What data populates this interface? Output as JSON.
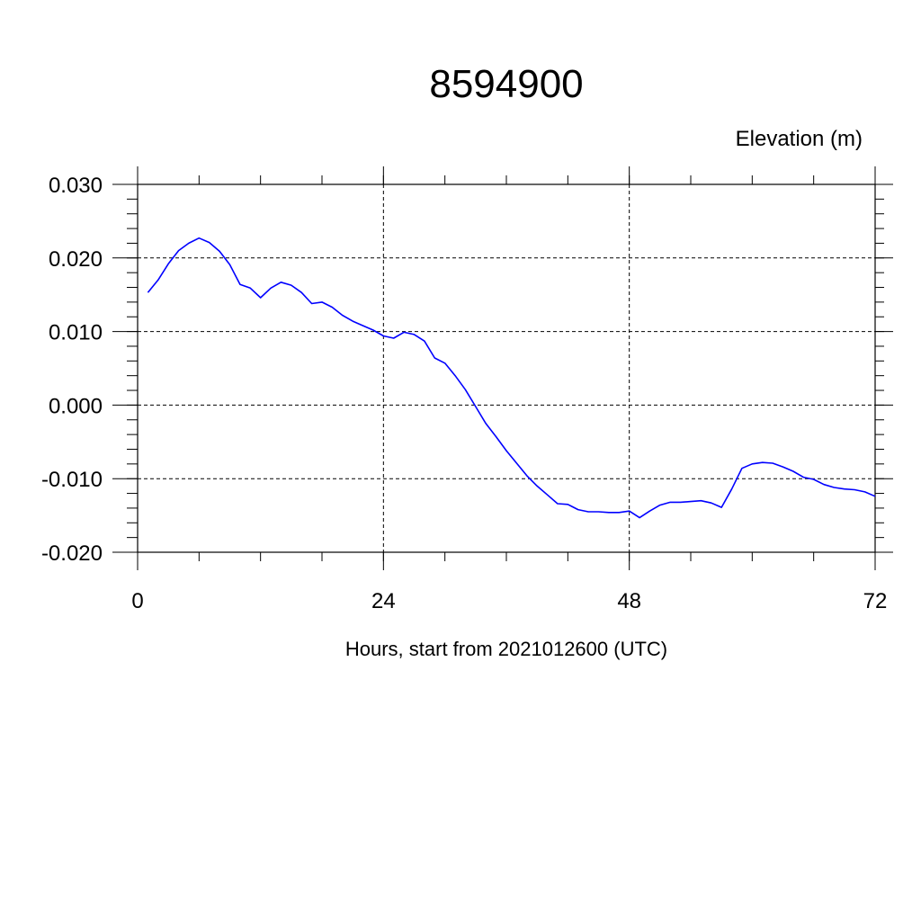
{
  "chart_data": {
    "type": "line",
    "title": "8594900",
    "unit_label": "Elevation (m)",
    "xlabel": "Hours, start from 2021012600 (UTC)",
    "ylabel": "",
    "xlim": [
      0,
      72
    ],
    "ylim": [
      -0.02,
      0.03
    ],
    "x_ticks": [
      0,
      24,
      48,
      72
    ],
    "x_tick_labels": [
      "0",
      "24",
      "48",
      "72"
    ],
    "y_ticks": [
      -0.02,
      -0.01,
      0.0,
      0.01,
      0.02,
      0.03
    ],
    "y_tick_labels": [
      "-0.020",
      "-0.010",
      "0.000",
      "0.010",
      "0.020",
      "0.030"
    ],
    "grid": true,
    "series": [
      {
        "color": "#0000ff",
        "x": [
          1,
          2,
          3,
          4,
          5,
          6,
          7,
          8,
          9,
          10,
          11,
          12,
          13,
          14,
          15,
          16,
          17,
          18,
          19,
          20,
          21,
          22,
          23,
          24,
          25,
          26,
          27,
          28,
          29,
          30,
          31,
          32,
          33,
          34,
          35,
          36,
          37,
          38,
          39,
          40,
          41,
          42,
          43,
          44,
          45,
          46,
          47,
          48,
          49,
          50,
          51,
          52,
          53,
          54,
          55,
          56,
          57,
          58,
          59,
          60,
          61,
          62,
          63,
          64,
          65,
          66,
          67,
          68,
          69,
          70,
          71,
          72
        ],
        "values": [
          0.0153,
          0.017,
          0.0192,
          0.021,
          0.022,
          0.0227,
          0.0221,
          0.0209,
          0.0191,
          0.0164,
          0.0159,
          0.0146,
          0.0159,
          0.0167,
          0.0163,
          0.0153,
          0.0138,
          0.014,
          0.0133,
          0.0122,
          0.0114,
          0.0108,
          0.0102,
          0.0094,
          0.0091,
          0.0099,
          0.0096,
          0.0087,
          0.0064,
          0.0057,
          0.004,
          0.0021,
          -0.0002,
          -0.0025,
          -0.0043,
          -0.0062,
          -0.0079,
          -0.0096,
          -0.011,
          -0.0122,
          -0.0134,
          -0.0135,
          -0.0142,
          -0.0145,
          -0.0145,
          -0.0146,
          -0.0146,
          -0.0144,
          -0.0153,
          -0.0144,
          -0.0136,
          -0.0132,
          -0.0132,
          -0.0131,
          -0.013,
          -0.0133,
          -0.0139,
          -0.0114,
          -0.0086,
          -0.008,
          -0.0078,
          -0.0079,
          -0.0084,
          -0.009,
          -0.0098,
          -0.0101,
          -0.0108,
          -0.0112,
          -0.0114,
          -0.0115,
          -0.0118,
          -0.0124
        ]
      }
    ]
  }
}
